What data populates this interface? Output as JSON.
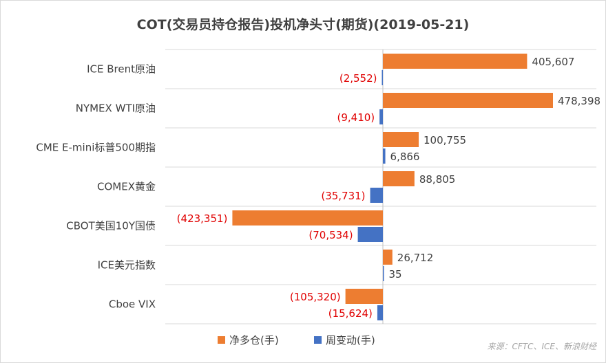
{
  "chart_data": {
    "type": "bar",
    "orientation": "horizontal",
    "title": "COT(交易员持仓报告)投机净头寸(期货)(2019-05-21)",
    "categories": [
      "ICE Brent原油",
      "NYMEX WTI原油",
      "CME E-mini标普500期指",
      "COMEX黄金",
      "CBOT美国10Y国债",
      "ICE美元指数",
      "Cboe VIX"
    ],
    "series": [
      {
        "name": "净多仓(手)",
        "color": "#ed7d31",
        "values": [
          405607,
          478398,
          100755,
          88805,
          -423351,
          26712,
          -105320
        ],
        "labels": [
          "405,607",
          "478,398",
          "100,755",
          "88,805",
          "(423,351)",
          "26,712",
          "(105,320)"
        ]
      },
      {
        "name": "周变动(手)",
        "color": "#4472c4",
        "values": [
          -2552,
          -9410,
          6866,
          -35731,
          -70534,
          35,
          -15624
        ],
        "labels": [
          "(2,552)",
          "(9,410)",
          "6,866",
          "(35,731)",
          "(70,534)",
          "35",
          "(15,624)"
        ]
      }
    ],
    "legend": "bottom",
    "negative_label_color": "#e00000",
    "grid": false,
    "source": "来源：CFTC、ICE、新浪财经"
  }
}
